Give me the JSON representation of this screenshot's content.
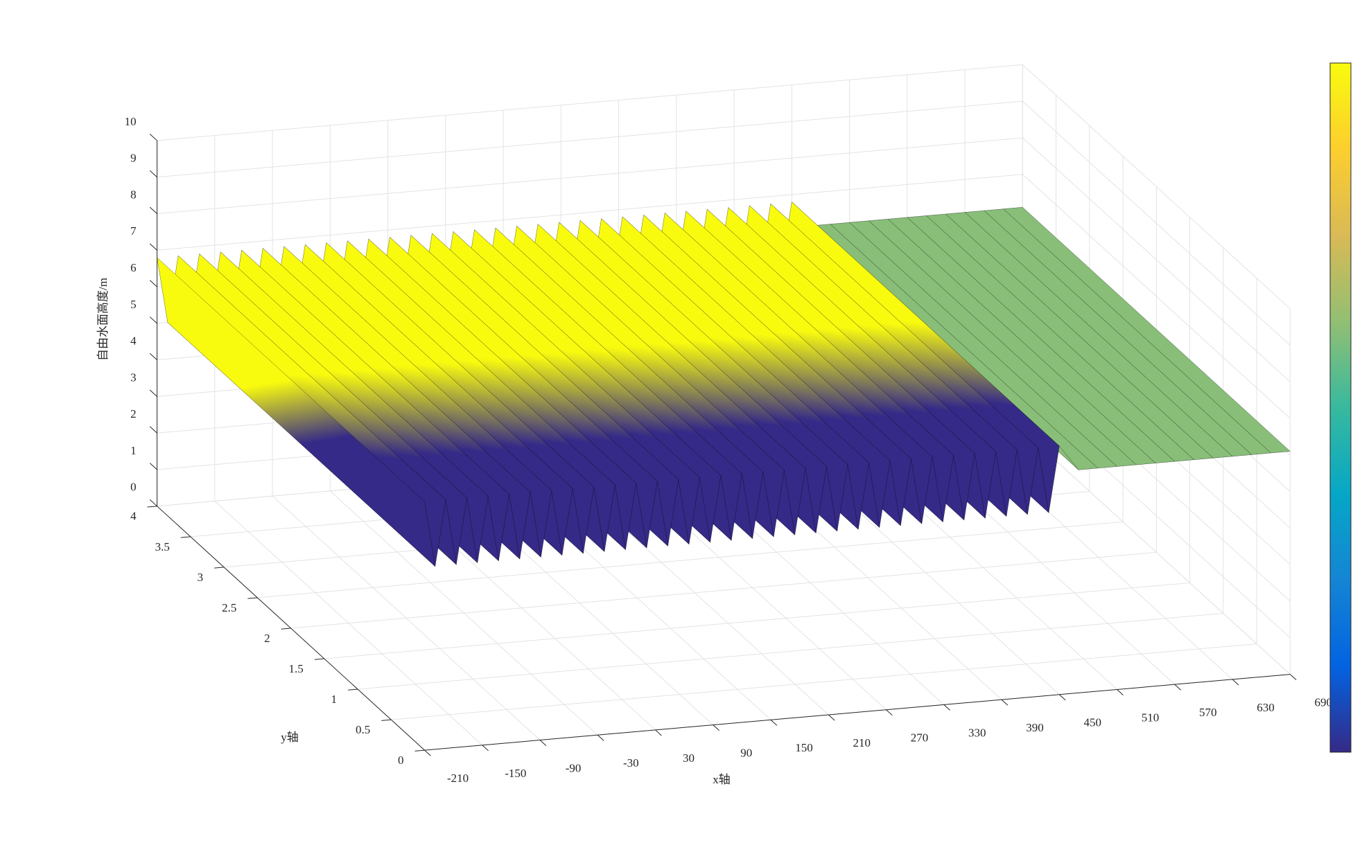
{
  "chart_data": {
    "type": "surface3d",
    "xlabel": "x轴",
    "ylabel": "y轴",
    "zlabel": "自由水面高度/m",
    "xlim": [
      -210,
      690
    ],
    "xticks": [
      -210,
      -150,
      -90,
      -30,
      30,
      90,
      150,
      210,
      270,
      330,
      390,
      450,
      510,
      570,
      630,
      690
    ],
    "ylim": [
      0,
      4
    ],
    "yticks": [
      0,
      0.5,
      1,
      1.5,
      2,
      2.5,
      3,
      3.5,
      4
    ],
    "zlim": [
      0,
      10
    ],
    "zticks": [
      0,
      1,
      2,
      3,
      4,
      5,
      6,
      7,
      8,
      9,
      10
    ],
    "grid": true,
    "colormap": "parula",
    "clim": [
      5,
      6.8
    ],
    "edgecolor": "#000000",
    "colorbar": true,
    "x": [
      -210,
      -199,
      -188,
      -177,
      -166,
      -155,
      -144,
      -133,
      -122,
      -111,
      -100,
      -89,
      -78,
      -67,
      -56,
      -45,
      -34,
      -23,
      -12,
      -1,
      10,
      21,
      32,
      43,
      54,
      65,
      76,
      87,
      98,
      109,
      120,
      131,
      142,
      153,
      164,
      175,
      186,
      197,
      208,
      219,
      230,
      241,
      252,
      263,
      274,
      285,
      296,
      307,
      318,
      329,
      340,
      351,
      362,
      373,
      384,
      395,
      406,
      417,
      428,
      439,
      450,
      470,
      490,
      510,
      530,
      550,
      570,
      590,
      610,
      630,
      650,
      670,
      690
    ],
    "z": [
      6.8,
      5,
      6.8,
      5,
      6.8,
      5,
      6.8,
      5,
      6.8,
      5,
      6.8,
      5,
      6.8,
      5,
      6.8,
      5,
      6.8,
      5,
      6.8,
      5,
      6.8,
      5,
      6.8,
      5,
      6.8,
      5,
      6.8,
      5,
      6.8,
      5,
      6.8,
      5,
      6.8,
      5,
      6.8,
      5,
      6.8,
      5,
      6.8,
      5,
      6.8,
      5,
      6.8,
      5,
      6.8,
      5,
      6.8,
      5,
      6.8,
      5,
      6.8,
      5,
      6.8,
      5,
      6.8,
      5,
      6.8,
      5,
      6.8,
      5,
      6.8,
      6.1,
      6.1,
      6.1,
      6.1,
      6.1,
      6.1,
      6.1,
      6.1,
      6.1,
      6.1,
      6.1,
      6.1
    ]
  }
}
